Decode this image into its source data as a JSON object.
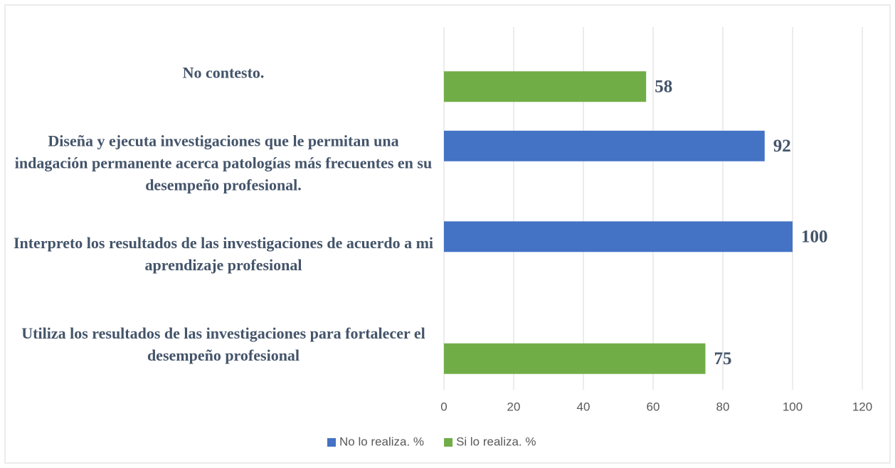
{
  "chart_data": {
    "type": "bar",
    "orientation": "horizontal",
    "categories": [
      "No contesto.",
      "Diseña y ejecuta investigaciones que le permitan una indagación permanente acerca patologías más frecuentes en su desempeño profesional.",
      "Interpreto los resultados de las investigaciones de acuerdo a mi aprendizaje profesional",
      "Utiliza los resultados de las investigaciones para fortalecer el desempeño profesional"
    ],
    "series": [
      {
        "name": "No lo realiza. %",
        "color": "#4472c4",
        "values": [
          null,
          92,
          100,
          null
        ]
      },
      {
        "name": "Si lo realiza. %",
        "color": "#70ad47",
        "values": [
          58,
          null,
          null,
          75
        ]
      }
    ],
    "xlim": [
      0,
      120
    ],
    "xticks": [
      0,
      20,
      40,
      60,
      80,
      100,
      120
    ],
    "grid": true,
    "legend": "bottom"
  }
}
